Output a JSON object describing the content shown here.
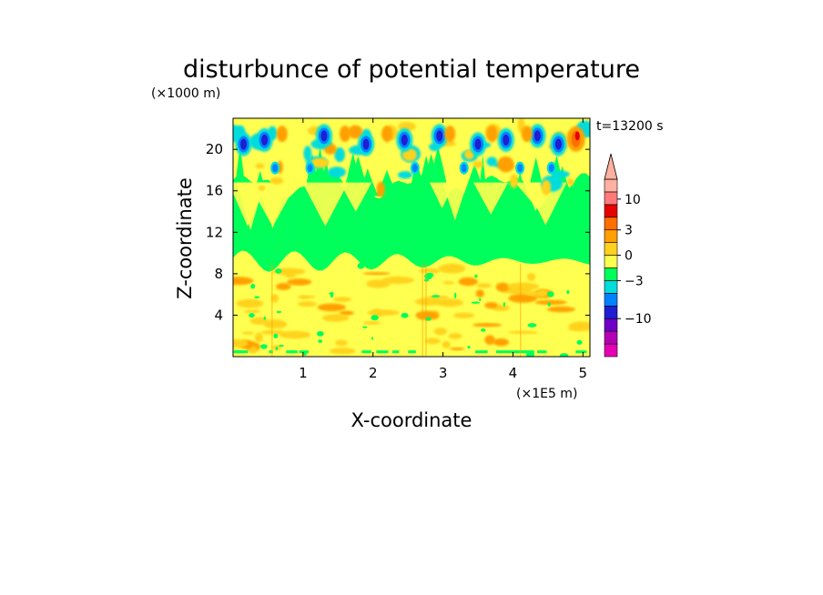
{
  "chart_data": {
    "type": "heatmap",
    "title": "disturbunce of potential temperature",
    "time_label": "t=13200 s",
    "xlabel": "X-coordinate",
    "ylabel": "Z-coordinate",
    "x_unit": "(×1E5 m)",
    "y_unit": "(×1000 m)",
    "xlim": [
      0,
      5.1
    ],
    "ylim": [
      0,
      23
    ],
    "x_ticks": [
      1,
      2,
      3,
      4,
      5
    ],
    "x_tick_labels": [
      "1",
      "2",
      "3",
      "4",
      "5"
    ],
    "y_ticks": [
      4,
      8,
      12,
      16,
      20
    ],
    "y_tick_labels": [
      "4",
      "8",
      "12",
      "16",
      "20"
    ],
    "colorbar": {
      "colors": [
        "#e600b4",
        "#b400b4",
        "#6e00c8",
        "#1e1ed2",
        "#0082ff",
        "#00dcdc",
        "#00ff5a",
        "#ffff50",
        "#ffd21e",
        "#ffa000",
        "#ff6e00",
        "#e60000",
        "#ff7a7a",
        "#ffb0a0"
      ],
      "tick_labels": [
        "10",
        "3",
        "0",
        "−3",
        "−10"
      ],
      "tick_values": [
        10,
        3,
        0,
        -3,
        -10
      ],
      "extend_max": true
    },
    "regions": [
      {
        "z_range": [
          0,
          9.5
        ],
        "dominant_value": 0.8,
        "color": "#ffff50",
        "note": "yellow with orange patches"
      },
      {
        "z_range": [
          9.5,
          16
        ],
        "dominant_value": 0,
        "color": "#00ff5a",
        "note": "green band"
      },
      {
        "z_range": [
          16,
          23
        ],
        "dominant_value": 1,
        "color": "#ffff50",
        "note": "wavy yellow/green/cyan/orange cells with blue cores"
      }
    ]
  }
}
